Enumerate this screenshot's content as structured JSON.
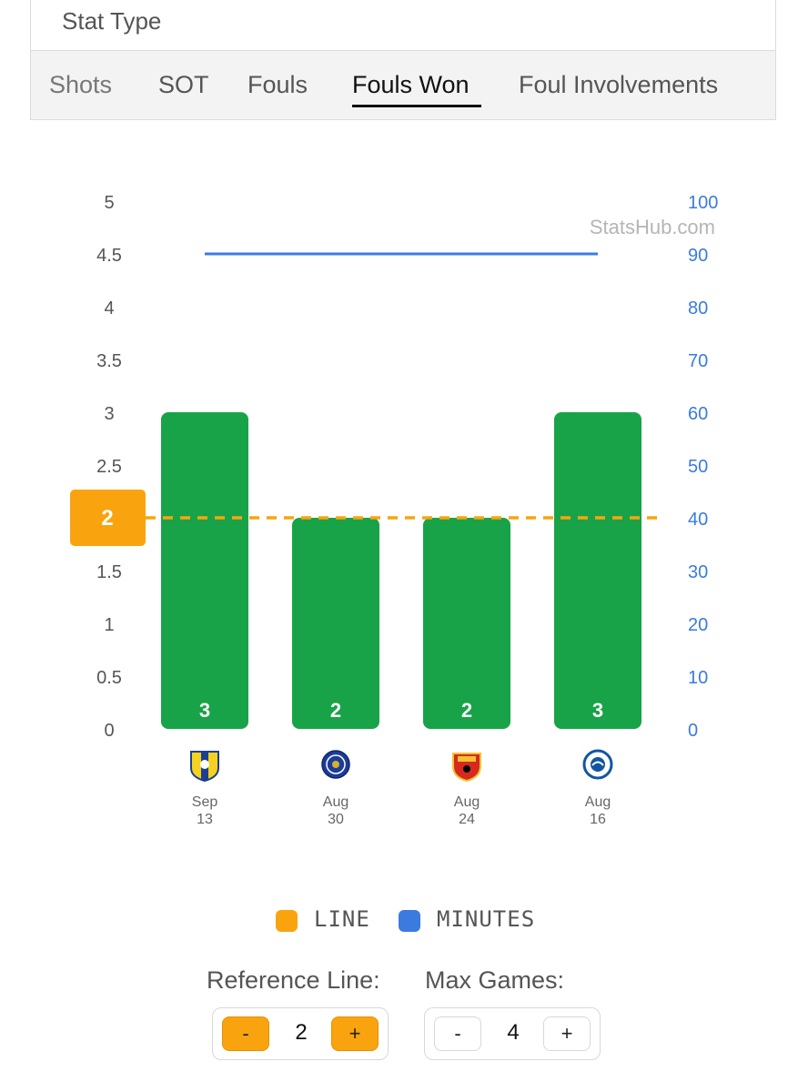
{
  "panel": {
    "title": "Stat Type",
    "tabs": [
      {
        "label": "Shots",
        "active": false
      },
      {
        "label": "SOT",
        "active": false
      },
      {
        "label": "Fouls",
        "active": false
      },
      {
        "label": "Fouls Won",
        "active": true
      },
      {
        "label": "Foul Involvements",
        "active": false
      }
    ]
  },
  "chart_data": {
    "type": "bar",
    "watermark": "StatsHub.com",
    "categories": [
      {
        "month": "Sep",
        "day": "13",
        "team_icon": "leeds-crest-icon"
      },
      {
        "month": "Aug",
        "day": "30",
        "team_icon": "chelsea-crest-icon"
      },
      {
        "month": "Aug",
        "day": "24",
        "team_icon": "man-united-crest-icon"
      },
      {
        "month": "Aug",
        "day": "16",
        "team_icon": "brighton-crest-icon"
      }
    ],
    "values": [
      3,
      2,
      2,
      3
    ],
    "value_labels": [
      "3",
      "2",
      "2",
      "3"
    ],
    "minutes": [
      90,
      90,
      90,
      90
    ],
    "reference_line": 2,
    "reference_label": "2",
    "y_left": {
      "min": 0,
      "max": 5,
      "ticks": [
        "0",
        "0.5",
        "1",
        "1.5",
        "2",
        "2.5",
        "3",
        "3.5",
        "4",
        "4.5",
        "5"
      ]
    },
    "y_right": {
      "min": 0,
      "max": 100,
      "ticks": [
        "0",
        "10",
        "20",
        "30",
        "40",
        "50",
        "60",
        "70",
        "80",
        "90",
        "100"
      ]
    },
    "colors": {
      "bar": "#18a348",
      "line": "#f9a40f",
      "minutes": "#3b7be0",
      "right_axis": "#3b7be0"
    }
  },
  "legend": [
    {
      "label": "LINE",
      "color": "#f9a40f"
    },
    {
      "label": "MINUTES",
      "color": "#3b7be0"
    }
  ],
  "controls": {
    "reference": {
      "label": "Reference Line:",
      "value": "2",
      "minus": "-",
      "plus": "+"
    },
    "max_games": {
      "label": "Max Games:",
      "value": "4",
      "minus": "-",
      "plus": "+"
    }
  }
}
